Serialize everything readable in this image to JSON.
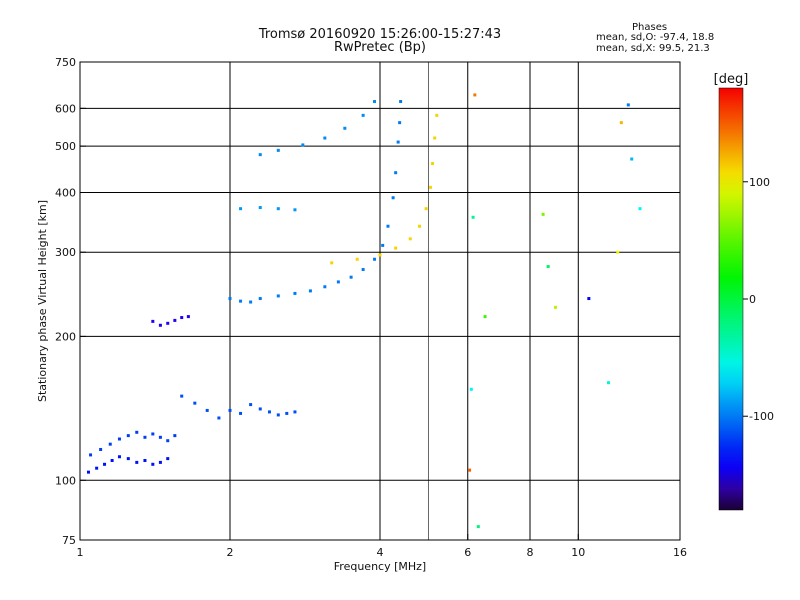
{
  "chart_data": {
    "type": "scatter",
    "title": "Tromsø 20160920 15:26:00-15:27:43",
    "subtitle": "RwPretec (Bp)",
    "xlabel": "Frequency [MHz]",
    "ylabel": "Stationary phase Virtual Height [km]",
    "x_scale": "log",
    "y_scale": "log",
    "xlim": [
      1,
      16
    ],
    "ylim": [
      75,
      750
    ],
    "x_ticks": [
      1,
      2,
      4,
      6,
      8,
      10,
      16
    ],
    "x_tick_labels": [
      "1",
      "2",
      "4",
      "6",
      "8",
      "10",
      "16"
    ],
    "y_ticks": [
      75,
      100,
      200,
      300,
      400,
      500,
      600,
      750
    ],
    "y_tick_labels": [
      "75",
      "100",
      "200",
      "300",
      "400",
      "500",
      "600",
      "750"
    ],
    "grid": true,
    "colorbar": {
      "label": "[deg]",
      "range": [
        -180,
        180
      ],
      "tick_values": [
        100,
        0,
        -100
      ],
      "tick_labels": [
        "100",
        "0",
        "-100"
      ]
    },
    "phases": {
      "heading": "Phases",
      "o_line": "mean, sd,O: -97.4, 18.8",
      "x_line": "mean, sd,X:  99.5, 21.3"
    },
    "series": [
      {
        "values": [
          [
            1.05,
            113
          ],
          [
            1.1,
            116
          ],
          [
            1.15,
            119
          ],
          [
            1.2,
            122
          ],
          [
            1.25,
            124
          ],
          [
            1.3,
            126
          ],
          [
            1.35,
            123
          ],
          [
            1.4,
            125
          ],
          [
            1.45,
            123
          ],
          [
            1.5,
            121
          ],
          [
            1.55,
            124
          ]
        ]
      },
      {
        "values": [
          [
            1.04,
            104
          ],
          [
            1.08,
            106
          ],
          [
            1.12,
            108
          ],
          [
            1.16,
            110
          ],
          [
            1.2,
            112
          ],
          [
            1.25,
            111
          ],
          [
            1.3,
            109
          ],
          [
            1.35,
            110
          ],
          [
            1.4,
            108
          ],
          [
            1.45,
            109
          ],
          [
            1.5,
            111
          ]
        ]
      },
      {
        "values": [
          [
            1.4,
            215
          ],
          [
            1.45,
            211
          ],
          [
            1.5,
            213
          ],
          [
            1.55,
            216
          ],
          [
            1.6,
            219
          ],
          [
            1.65,
            220
          ]
        ]
      },
      {
        "values": [
          [
            1.6,
            150
          ],
          [
            1.7,
            145
          ],
          [
            1.8,
            140
          ],
          [
            1.9,
            135
          ],
          [
            2.0,
            140
          ],
          [
            2.1,
            138
          ],
          [
            2.2,
            144
          ],
          [
            2.3,
            141
          ],
          [
            2.4,
            139
          ],
          [
            2.5,
            137
          ],
          [
            2.6,
            138
          ],
          [
            2.7,
            139
          ]
        ]
      },
      {
        "values": [
          [
            2.0,
            240
          ],
          [
            2.1,
            237
          ],
          [
            2.2,
            236
          ],
          [
            2.3,
            240
          ],
          [
            2.5,
            243
          ],
          [
            2.7,
            246
          ],
          [
            2.9,
            249
          ],
          [
            3.1,
            254
          ],
          [
            3.3,
            260
          ],
          [
            3.5,
            266
          ],
          [
            3.7,
            276
          ],
          [
            3.9,
            290
          ],
          [
            4.05,
            310
          ],
          [
            4.15,
            340
          ],
          [
            4.25,
            390
          ],
          [
            4.3,
            440
          ],
          [
            4.35,
            510
          ],
          [
            4.38,
            560
          ],
          [
            4.4,
            620
          ]
        ]
      },
      {
        "values": [
          [
            2.3,
            480
          ],
          [
            2.5,
            490
          ],
          [
            2.8,
            503
          ],
          [
            3.1,
            520
          ],
          [
            3.4,
            545
          ],
          [
            3.7,
            580
          ],
          [
            3.9,
            620
          ]
        ]
      },
      {
        "values": [
          [
            2.1,
            370
          ],
          [
            2.3,
            372
          ],
          [
            2.5,
            370
          ],
          [
            2.7,
            368
          ]
        ]
      },
      {
        "values": [
          [
            3.2,
            285
          ],
          [
            3.6,
            290
          ],
          [
            4.0,
            296
          ],
          [
            4.3,
            306
          ],
          [
            4.6,
            320
          ],
          [
            4.8,
            340
          ],
          [
            4.95,
            370
          ],
          [
            5.05,
            410
          ],
          [
            5.1,
            460
          ],
          [
            5.15,
            520
          ],
          [
            5.2,
            580
          ]
        ]
      },
      {
        "values": [
          [
            6.05,
            105
          ],
          [
            6.1,
            155
          ],
          [
            6.15,
            355
          ],
          [
            6.2,
            640
          ],
          [
            6.3,
            80
          ],
          [
            6.5,
            220
          ],
          [
            8.5,
            360
          ],
          [
            8.7,
            280
          ],
          [
            9.0,
            230
          ],
          [
            10.5,
            240
          ],
          [
            11.5,
            160
          ],
          [
            12.0,
            300
          ],
          [
            12.2,
            560
          ],
          [
            12.6,
            610
          ],
          [
            12.8,
            470
          ],
          [
            13.3,
            370
          ]
        ]
      }
    ]
  }
}
